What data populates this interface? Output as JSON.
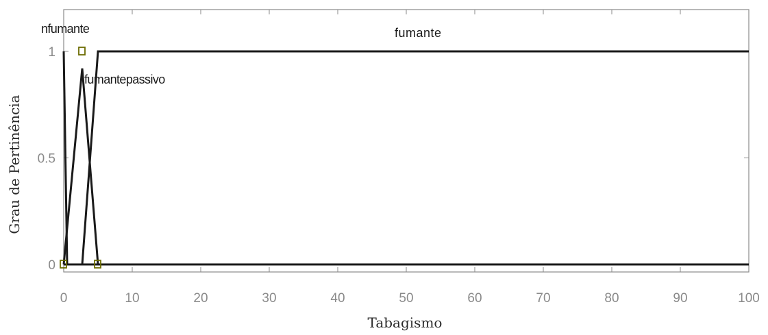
{
  "chart_data": {
    "type": "line",
    "title": "",
    "xlabel": "Tabagismo",
    "ylabel": "Grau de Pertinência",
    "xlim": [
      0,
      100
    ],
    "ylim": [
      0,
      1
    ],
    "x_ticks": [
      0,
      10,
      20,
      30,
      40,
      50,
      60,
      70,
      80,
      90,
      100
    ],
    "y_ticks": [
      0,
      0.5,
      1
    ],
    "grid": false,
    "legend": "none",
    "series": [
      {
        "name": "nfumante",
        "x": [
          0,
          0.5
        ],
        "y": [
          1,
          0
        ]
      },
      {
        "name": "fumantepassivo",
        "x": [
          0,
          2.7,
          5
        ],
        "y": [
          0,
          0.92,
          0
        ]
      },
      {
        "name": "fumante",
        "x": [
          2.7,
          5,
          100
        ],
        "y": [
          0,
          1,
          1
        ]
      }
    ],
    "colors": {
      "line": "#1a1a1a",
      "axis": "#8a8a8a",
      "marker": "#6b6b00"
    }
  }
}
